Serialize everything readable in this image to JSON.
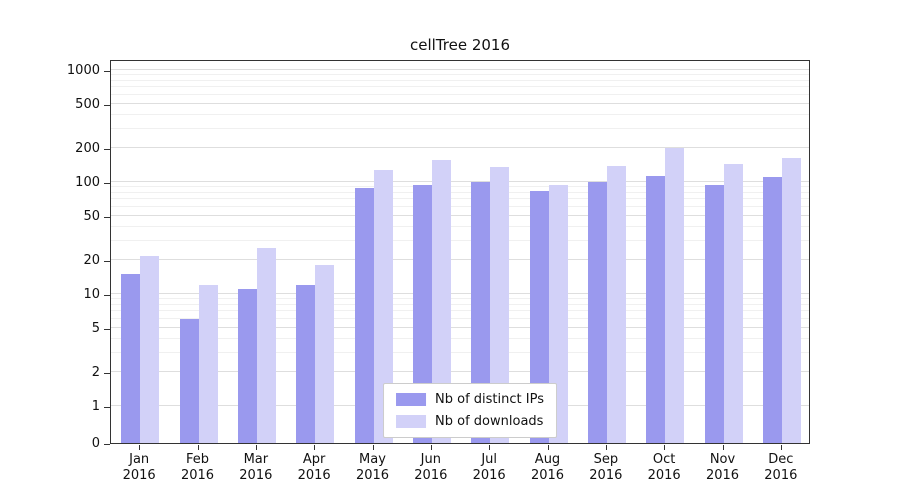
{
  "chart_data": {
    "type": "bar",
    "title": "cellTree 2016",
    "xlabel": "",
    "ylabel": "",
    "yscale": "symlog",
    "ylim": [
      0,
      1250
    ],
    "grid": true,
    "legend_position": "lower center",
    "year": "2016",
    "categories": [
      "Jan",
      "Feb",
      "Mar",
      "Apr",
      "May",
      "Jun",
      "Jul",
      "Aug",
      "Sep",
      "Oct",
      "Nov",
      "Dec"
    ],
    "yticks": [
      0,
      1,
      2,
      5,
      10,
      20,
      50,
      100,
      200,
      500,
      1000
    ],
    "series": [
      {
        "name": "Nb of distinct IPs",
        "color": "#9a99ee",
        "values": [
          15,
          6,
          11,
          12,
          88,
          95,
          100,
          83,
          100,
          113,
          95,
          110
        ]
      },
      {
        "name": "Nb of downloads",
        "color": "#d2d1f8",
        "values": [
          22,
          12,
          26,
          18,
          128,
          158,
          135,
          95,
          140,
          200,
          145,
          165
        ]
      }
    ]
  }
}
